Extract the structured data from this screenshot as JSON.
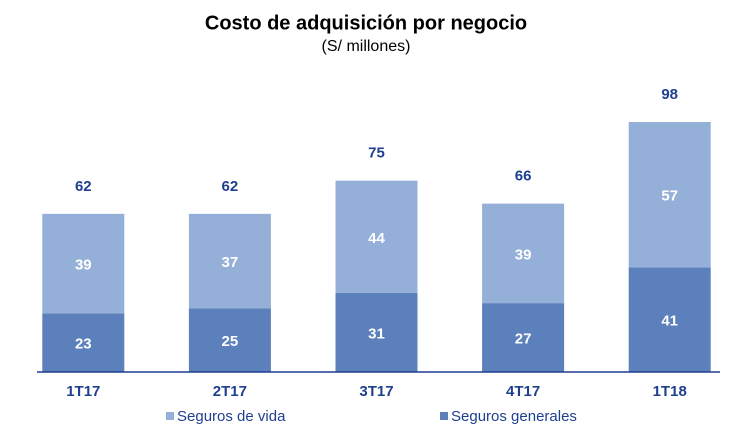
{
  "chart_data": {
    "type": "stacked_bar",
    "title": "Costo de adquisición por negocio",
    "subtitle": "(S/ millones)",
    "categories": [
      "1T17",
      "2T17",
      "3T17",
      "4T17",
      "1T18"
    ],
    "series": [
      {
        "name": "Seguros de vida",
        "color": "#95b0d8",
        "values": [
          39,
          37,
          44,
          39,
          57
        ]
      },
      {
        "name": "Seguros generales",
        "color": "#5b80bc",
        "values": [
          23,
          25,
          31,
          27,
          41
        ]
      }
    ],
    "totals": [
      62,
      62,
      75,
      66,
      98
    ]
  }
}
